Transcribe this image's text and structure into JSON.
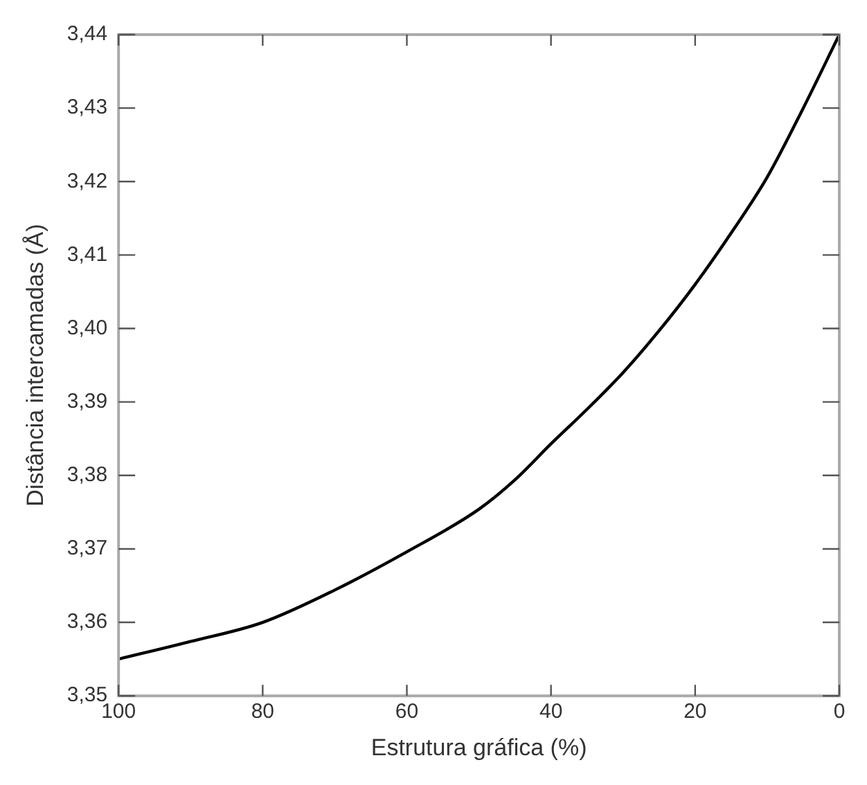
{
  "chart_data": {
    "type": "line",
    "xlabel": "Estrutura gráfica (%)",
    "ylabel": "Distância intercamadas (Å)",
    "x": [
      100,
      90,
      80,
      70,
      60,
      50,
      45,
      40,
      35,
      30,
      25,
      20,
      15,
      10,
      5,
      0
    ],
    "series": [
      {
        "color": "#000000",
        "values": [
          3.355,
          3.3574,
          3.36,
          3.3644,
          3.3696,
          3.3754,
          3.3794,
          3.3843,
          3.389,
          3.394,
          3.3997,
          3.406,
          3.413,
          3.4206,
          3.43,
          3.44
        ]
      }
    ],
    "xlim": [
      100,
      0
    ],
    "xticks": [
      100,
      80,
      60,
      40,
      20,
      0
    ],
    "ylim": [
      3.35,
      3.44
    ],
    "yticks": [
      {
        "value": 3.35,
        "label": "3,35"
      },
      {
        "value": 3.36,
        "label": "3,36"
      },
      {
        "value": 3.37,
        "label": "3,37"
      },
      {
        "value": 3.38,
        "label": "3,38"
      },
      {
        "value": 3.39,
        "label": "3,39"
      },
      {
        "value": 3.4,
        "label": "3,40"
      },
      {
        "value": 3.41,
        "label": "3,41"
      },
      {
        "value": 3.42,
        "label": "3,42"
      },
      {
        "value": 3.43,
        "label": "3,43"
      },
      {
        "value": 3.44,
        "label": "3,44"
      }
    ],
    "grid": false,
    "marker": "none",
    "line_style": "solid"
  }
}
